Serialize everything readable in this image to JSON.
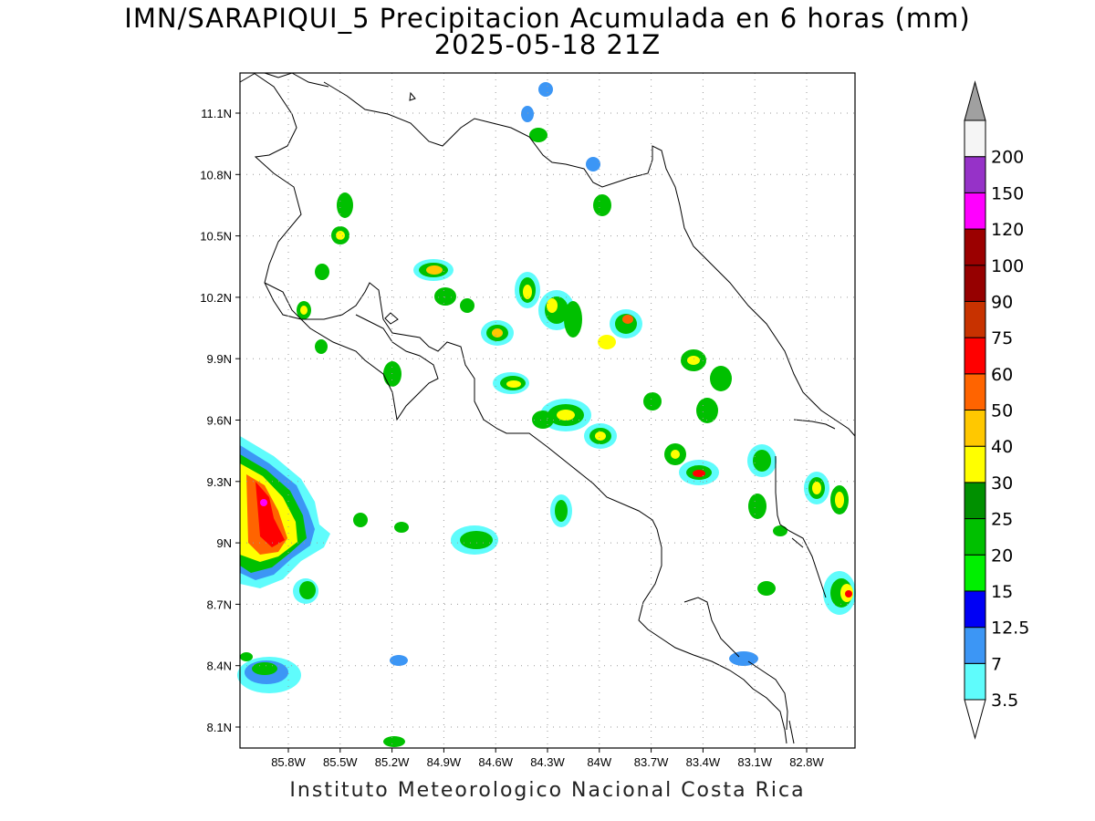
{
  "title_line1": "IMN/SARAPIQUI_5 Precipitacion Acumulada en 6 horas (mm)",
  "title_line2": "2025-05-18 21Z",
  "credit": "Instituto Meteorologico Nacional Costa Rica",
  "map": {
    "lon_ticks": [
      "85.8W",
      "85.5W",
      "85.2W",
      "84.9W",
      "84.6W",
      "84.3W",
      "84W",
      "83.7W",
      "83.4W",
      "83.1W",
      "82.8W"
    ],
    "lat_ticks": [
      "11.1N",
      "10.8N",
      "10.5N",
      "10.2N",
      "9.9N",
      "9.6N",
      "9.3N",
      "9N",
      "8.7N",
      "8.4N",
      "8.1N"
    ]
  },
  "colorbar": {
    "labels": [
      "3.5",
      "7",
      "12.5",
      "15",
      "20",
      "25",
      "30",
      "40",
      "50",
      "60",
      "75",
      "90",
      "100",
      "120",
      "150",
      "200"
    ],
    "colors": [
      "#5ffcfc",
      "#3c96f5",
      "#0000f5",
      "#00f000",
      "#00c000",
      "#009000",
      "#ffff00",
      "#ffc800",
      "#ff6400",
      "#ff0000",
      "#c83200",
      "#960000",
      "#9b0000",
      "#ff00ff",
      "#9632c8",
      "#f5f5f5"
    ],
    "over_color": "#a0a0a0"
  }
}
